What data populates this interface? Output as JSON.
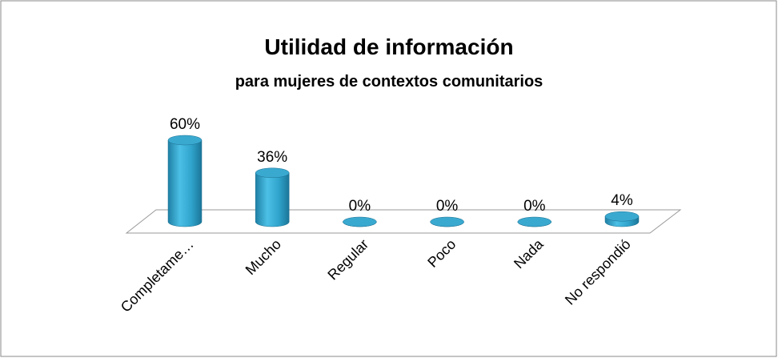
{
  "chart_data": {
    "type": "bar3d",
    "title": "Utilidad de información",
    "subtitle": "para mujeres de contextos comunitarios",
    "categories": [
      "Completame…",
      "Mucho",
      "Regular",
      "Poco",
      "Nada",
      "No respondió"
    ],
    "values": [
      60,
      36,
      0,
      0,
      0,
      4
    ],
    "value_labels": [
      "60%",
      "36%",
      "0%",
      "0%",
      "0%",
      "4%"
    ],
    "color": "#2e9fc6"
  }
}
